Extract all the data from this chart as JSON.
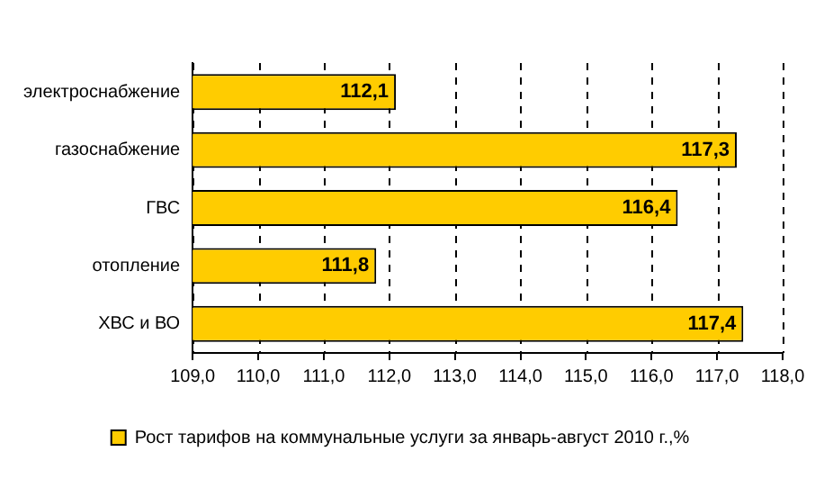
{
  "chart_data": {
    "type": "bar",
    "orientation": "horizontal",
    "categories": [
      "электроснабжение",
      "газоснабжение",
      "ГВС",
      "отопление",
      "ХВС и ВО"
    ],
    "series": [
      {
        "name": "Рост тарифов на коммунальные услуги за январь-август 2010 г.,%",
        "color": "#ffcc00",
        "values": [
          112.1,
          117.3,
          116.4,
          111.8,
          117.4
        ],
        "value_labels": [
          "112,1",
          "117,3",
          "116,4",
          "111,8",
          "117,4"
        ]
      }
    ],
    "xlim": [
      109,
      118
    ],
    "xticks": [
      {
        "value": 109,
        "label": "109,0"
      },
      {
        "value": 110,
        "label": "110,0"
      },
      {
        "value": 111,
        "label": "111,0"
      },
      {
        "value": 112,
        "label": "112,0"
      },
      {
        "value": 113,
        "label": "113,0"
      },
      {
        "value": 114,
        "label": "114,0"
      },
      {
        "value": 115,
        "label": "115,0"
      },
      {
        "value": 116,
        "label": "116,0"
      },
      {
        "value": 117,
        "label": "117,0"
      },
      {
        "value": 118,
        "label": "118,0"
      }
    ],
    "grid": "x",
    "legend": "bottom"
  }
}
